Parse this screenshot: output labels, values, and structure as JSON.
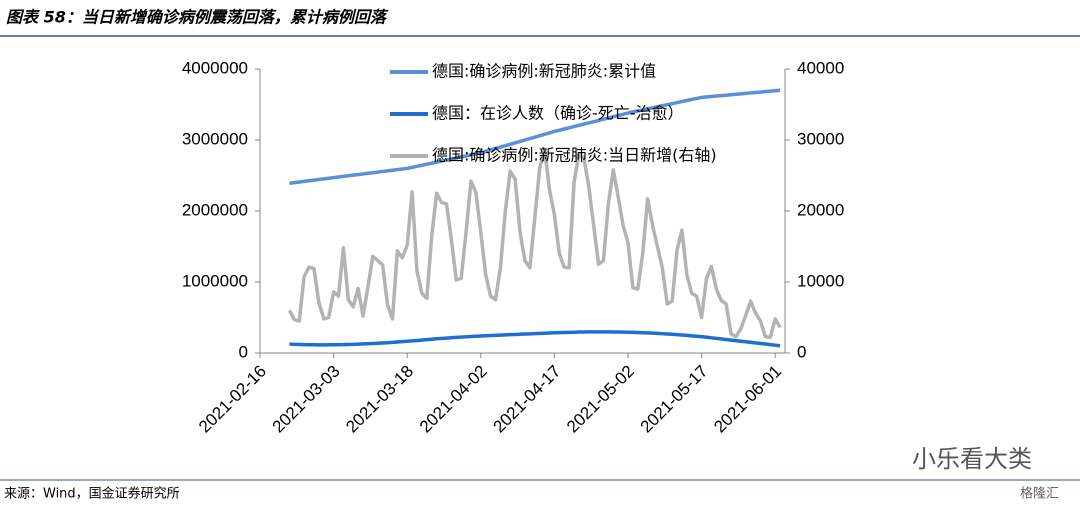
{
  "chart_data": {
    "type": "line",
    "title": "图表 58：当日新增确诊病例震荡回落，累计病例回落",
    "source": "来源：Wind，国金证券研究所",
    "annotations": [
      "小乐看大类",
      "格隆汇"
    ],
    "x": [
      "2021-02-22",
      "2021-02-23",
      "2021-02-24",
      "2021-02-25",
      "2021-02-26",
      "2021-02-27",
      "2021-02-28",
      "2021-03-01",
      "2021-03-02",
      "2021-03-03",
      "2021-03-04",
      "2021-03-05",
      "2021-03-06",
      "2021-03-07",
      "2021-03-08",
      "2021-03-09",
      "2021-03-10",
      "2021-03-11",
      "2021-03-12",
      "2021-03-13",
      "2021-03-14",
      "2021-03-15",
      "2021-03-16",
      "2021-03-17",
      "2021-03-18",
      "2021-03-19",
      "2021-03-20",
      "2021-03-21",
      "2021-03-22",
      "2021-03-23",
      "2021-03-24",
      "2021-03-25",
      "2021-03-26",
      "2021-03-27",
      "2021-03-28",
      "2021-03-29",
      "2021-03-30",
      "2021-03-31",
      "2021-04-01",
      "2021-04-02",
      "2021-04-03",
      "2021-04-04",
      "2021-04-05",
      "2021-04-06",
      "2021-04-07",
      "2021-04-08",
      "2021-04-09",
      "2021-04-10",
      "2021-04-11",
      "2021-04-12",
      "2021-04-13",
      "2021-04-14",
      "2021-04-15",
      "2021-04-16",
      "2021-04-17",
      "2021-04-18",
      "2021-04-19",
      "2021-04-20",
      "2021-04-21",
      "2021-04-22",
      "2021-04-23",
      "2021-04-24",
      "2021-04-25",
      "2021-04-26",
      "2021-04-27",
      "2021-04-28",
      "2021-04-29",
      "2021-04-30",
      "2021-05-01",
      "2021-05-02",
      "2021-05-03",
      "2021-05-04",
      "2021-05-05",
      "2021-05-06",
      "2021-05-07",
      "2021-05-08",
      "2021-05-09",
      "2021-05-10",
      "2021-05-11",
      "2021-05-12",
      "2021-05-13",
      "2021-05-14",
      "2021-05-15",
      "2021-05-16",
      "2021-05-17",
      "2021-05-18",
      "2021-05-19",
      "2021-05-20",
      "2021-05-21",
      "2021-05-22",
      "2021-05-23",
      "2021-05-24",
      "2021-05-25",
      "2021-05-26",
      "2021-05-27",
      "2021-05-28",
      "2021-05-29",
      "2021-05-30",
      "2021-05-31",
      "2021-06-01",
      "2021-06-02"
    ],
    "xlim": [
      "2021-02-16",
      "2021-06-03"
    ],
    "xticks": [
      "2021-02-16",
      "2021-03-03",
      "2021-03-18",
      "2021-04-02",
      "2021-04-17",
      "2021-05-02",
      "2021-05-17",
      "2021-06-01"
    ],
    "ylim": [
      0,
      4000000
    ],
    "yticks": [
      0,
      1000000,
      2000000,
      3000000,
      4000000
    ],
    "y2lim": [
      0,
      40000
    ],
    "y2ticks": [
      0,
      10000,
      20000,
      30000,
      40000
    ],
    "series": [
      {
        "name": "德国:确诊病例:新冠肺炎:累计值",
        "color": "#5b8fd6",
        "axis": "y",
        "values": [
          2390000,
          2399000,
          2408000,
          2417000,
          2426000,
          2435000,
          2443000,
          2452000,
          2461000,
          2470000,
          2479000,
          2487000,
          2496000,
          2505000,
          2513000,
          2522000,
          2531000,
          2539000,
          2548000,
          2557000,
          2565000,
          2574000,
          2583000,
          2591000,
          2600000,
          2615000,
          2629000,
          2644000,
          2659000,
          2673000,
          2688000,
          2703000,
          2717000,
          2732000,
          2747000,
          2761000,
          2776000,
          2791000,
          2805000,
          2820000,
          2840000,
          2860000,
          2880000,
          2900000,
          2920000,
          2940000,
          2960000,
          2980000,
          3000000,
          3020000,
          3040000,
          3060000,
          3080000,
          3100000,
          3120000,
          3137000,
          3155000,
          3172000,
          3189000,
          3207000,
          3224000,
          3241000,
          3258000,
          3276000,
          3293000,
          3310000,
          3328000,
          3345000,
          3362000,
          3380000,
          3395000,
          3409000,
          3424000,
          3439000,
          3453000,
          3468000,
          3483000,
          3497000,
          3512000,
          3527000,
          3541000,
          3556000,
          3571000,
          3585000,
          3600000,
          3606000,
          3613000,
          3619000,
          3625000,
          3631000,
          3638000,
          3644000,
          3650000,
          3656000,
          3663000,
          3669000,
          3675000,
          3681000,
          3688000,
          3694000,
          3700000
        ]
      },
      {
        "name": "德国：在诊人数（确诊-死亡-治愈）",
        "color": "#1f6fd0",
        "axis": "y",
        "values": [
          125000,
          122000,
          120000,
          118000,
          117000,
          116000,
          115000,
          115000,
          116000,
          116000,
          117000,
          118000,
          120000,
          122000,
          125000,
          128000,
          131000,
          134000,
          138000,
          141000,
          145000,
          150000,
          155000,
          160000,
          165000,
          170000,
          176000,
          182000,
          188000,
          194000,
          200000,
          205000,
          210000,
          215000,
          220000,
          224000,
          228000,
          232000,
          236000,
          240000,
          243000,
          246000,
          249000,
          252000,
          255000,
          258000,
          261000,
          264000,
          267000,
          270000,
          273000,
          276000,
          279000,
          282000,
          285000,
          287000,
          289000,
          291000,
          293000,
          295000,
          296000,
          297000,
          298000,
          298000,
          298000,
          297000,
          296000,
          295000,
          294000,
          293000,
          291000,
          289000,
          286000,
          283000,
          280000,
          276000,
          272000,
          268000,
          264000,
          259000,
          254000,
          248000,
          242000,
          236000,
          230000,
          222000,
          214000,
          206000,
          198000,
          190000,
          182000,
          174000,
          166000,
          158000,
          150000,
          142000,
          134000,
          126000,
          118000,
          110000,
          102000
        ]
      },
      {
        "name": "德国:确诊病例:新冠肺炎:当日新增(右轴)",
        "color": "#b3b3b3",
        "axis": "y2",
        "values": [
          6000,
          4700,
          4500,
          10800,
          12100,
          11900,
          7100,
          4800,
          5000,
          8600,
          8000,
          14800,
          7500,
          6500,
          9100,
          5200,
          9300,
          13600,
          13000,
          12400,
          6700,
          4800,
          14400,
          13400,
          15200,
          22700,
          11500,
          8400,
          7700,
          16500,
          22500,
          21200,
          21000,
          16000,
          10300,
          10500,
          17000,
          24200,
          22600,
          17000,
          11000,
          8000,
          7500,
          12000,
          20000,
          25600,
          24500,
          17000,
          13000,
          12000,
          19000,
          26000,
          28700,
          23000,
          19500,
          14000,
          12100,
          12000,
          24000,
          28000,
          27500,
          23500,
          18000,
          12500,
          13000,
          21000,
          25800,
          22000,
          18000,
          15500,
          9200,
          9000,
          14000,
          21700,
          18000,
          15000,
          12000,
          6900,
          7300,
          14500,
          17300,
          11000,
          8400,
          8000,
          5000,
          10500,
          12200,
          9000,
          7400,
          6900,
          2700,
          2300,
          3400,
          5300,
          7300,
          5600,
          4500,
          2300,
          2200,
          4800,
          3600
        ]
      }
    ]
  }
}
